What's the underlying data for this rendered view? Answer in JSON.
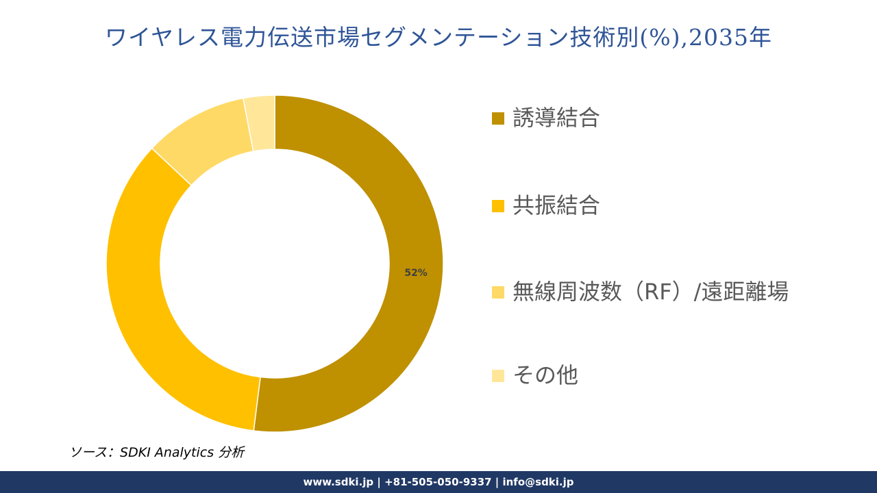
{
  "title": "ワイヤレス電力伝送市場セグメンテーション技術別(%),2035年",
  "chart_data": {
    "type": "pie",
    "donut": true,
    "title": "ワイヤレス電力伝送市場セグメンテーション技術別(%),2035年",
    "categories": [
      "誘導結合",
      "共振結合",
      "無線周波数（RF）/遠距離場",
      "その他"
    ],
    "values": [
      52,
      35,
      10,
      3
    ],
    "data_labels": [
      "52%",
      "",
      "",
      ""
    ],
    "colors": [
      "#BF9000",
      "#FFC000",
      "#FFD966",
      "#FFE699"
    ],
    "legend_placement": "right"
  },
  "source": "ソース：SDKI Analytics 分析",
  "footer": "www.sdki.jp | +81-505-050-9337 | info@sdki.jp"
}
